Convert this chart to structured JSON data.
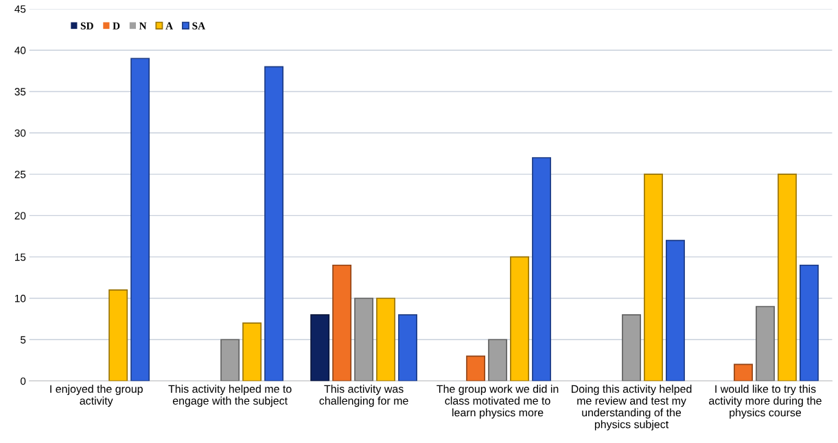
{
  "chart_data": {
    "type": "bar",
    "categories": [
      "I enjoyed the group\nactivity",
      "This activity helped me to\nengage with the subject",
      "This activity was\nchallenging for me",
      "The group work we did in\nclass motivated me to\nlearn physics more",
      "Doing this activity helped\nme review and test my\nunderstanding of the\nphysics subject",
      "I would like to try this\nactivity more during the\nphysics course"
    ],
    "series": [
      {
        "name": "SD",
        "color": "#0d2260",
        "values": [
          0,
          0,
          8,
          0,
          0,
          0
        ]
      },
      {
        "name": "D",
        "color": "#f07024",
        "values": [
          0,
          0,
          14,
          3,
          0,
          2
        ]
      },
      {
        "name": "N",
        "color": "#a0a0a0",
        "values": [
          0,
          5,
          10,
          5,
          8,
          9
        ]
      },
      {
        "name": "A",
        "color": "#ffc000",
        "values": [
          11,
          7,
          10,
          15,
          25,
          25
        ]
      },
      {
        "name": "SA",
        "color": "#2f62dc",
        "values": [
          39,
          38,
          8,
          27,
          17,
          14
        ]
      }
    ],
    "ylim": [
      0,
      45
    ],
    "yticks": [
      0,
      5,
      10,
      15,
      20,
      25,
      30,
      35,
      40,
      45
    ],
    "grid": "y",
    "legend": "top left"
  }
}
